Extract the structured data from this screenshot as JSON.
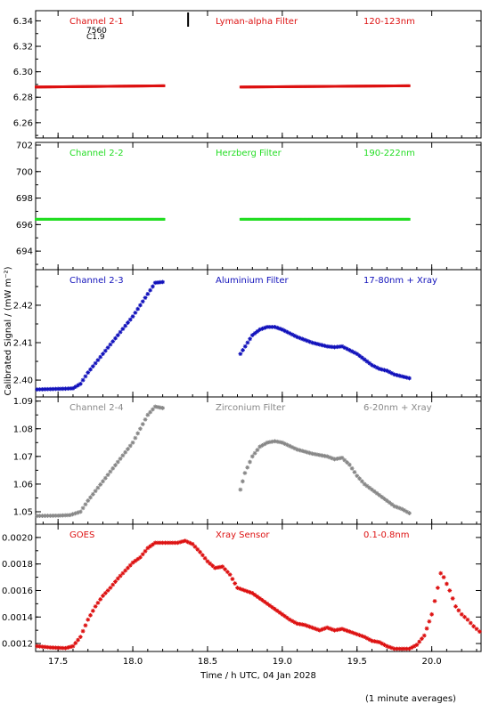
{
  "chart_data": {
    "type": "scatter",
    "xlabel": "Time / h UTC, 04 Jan 2028",
    "ylabel": "Calibrated Signal / (mW m⁻²)",
    "xlim": [
      17.35,
      20.33
    ],
    "xticks": [
      17.5,
      18.0,
      18.5,
      19.0,
      19.5,
      20.0
    ],
    "footnote": "(1 minute averages)",
    "panels": [
      {
        "channel": "Channel 2-1",
        "filter": "Lyman-alpha Filter",
        "band": "120-123nm",
        "color": "#dd1111",
        "annotations": [
          "7560",
          "C1.9"
        ],
        "ylim": [
          6.248,
          6.348
        ],
        "yticks": [
          6.26,
          6.28,
          6.3,
          6.32,
          6.34
        ],
        "segments": [
          {
            "x0": 17.35,
            "x1": 18.21,
            "y0": 6.288,
            "y1": 6.289
          },
          {
            "x0": 18.72,
            "x1": 19.85,
            "y0": 6.288,
            "y1": 6.289
          }
        ]
      },
      {
        "channel": "Channel 2-2",
        "filter": "Herzberg Filter",
        "band": "190-222nm",
        "color": "#22dd22",
        "ylim": [
          692.6,
          702.2
        ],
        "yticks": [
          694,
          696,
          698,
          700,
          702
        ],
        "segments": [
          {
            "x0": 17.35,
            "x1": 18.21,
            "y0": 696.4,
            "y1": 696.4
          },
          {
            "x0": 18.72,
            "x1": 19.85,
            "y0": 696.4,
            "y1": 696.4
          }
        ]
      },
      {
        "channel": "Channel 2-3",
        "filter": "Aluminium Filter",
        "band": "17-80nm + Xray",
        "color": "#1111bb",
        "ylim": [
          2.3955,
          2.4295
        ],
        "yticks": [
          2.4,
          2.41,
          2.42
        ],
        "series": [
          [
            17.36,
            2.3975
          ],
          [
            17.45,
            2.3976
          ],
          [
            17.55,
            2.3977
          ],
          [
            17.6,
            2.3978
          ],
          [
            17.65,
            2.399
          ],
          [
            17.7,
            2.402
          ],
          [
            17.8,
            2.407
          ],
          [
            17.9,
            2.412
          ],
          [
            18.0,
            2.417
          ],
          [
            18.05,
            2.42
          ],
          [
            18.1,
            2.423
          ],
          [
            18.15,
            2.426
          ],
          [
            18.2,
            2.4262
          ],
          [
            18.72,
            2.407
          ],
          [
            18.8,
            2.412
          ],
          [
            18.85,
            2.4135
          ],
          [
            18.9,
            2.4142
          ],
          [
            18.95,
            2.4142
          ],
          [
            19.0,
            2.4135
          ],
          [
            19.1,
            2.4115
          ],
          [
            19.2,
            2.41
          ],
          [
            19.25,
            2.4095
          ],
          [
            19.3,
            2.409
          ],
          [
            19.35,
            2.4088
          ],
          [
            19.4,
            2.409
          ],
          [
            19.45,
            2.408
          ],
          [
            19.5,
            2.407
          ],
          [
            19.55,
            2.4055
          ],
          [
            19.6,
            2.404
          ],
          [
            19.65,
            2.403
          ],
          [
            19.7,
            2.4025
          ],
          [
            19.75,
            2.4015
          ],
          [
            19.8,
            2.401
          ],
          [
            19.85,
            2.4005
          ]
        ]
      },
      {
        "channel": "Channel 2-4",
        "filter": "Zirconium Filter",
        "band": "6-20nm + Xray",
        "color": "#888888",
        "ylim": [
          1.0455,
          1.0915
        ],
        "yticks": [
          1.05,
          1.06,
          1.07,
          1.08,
          1.09
        ],
        "series": [
          [
            17.36,
            1.0485
          ],
          [
            17.5,
            1.0486
          ],
          [
            17.58,
            1.0488
          ],
          [
            17.65,
            1.05
          ],
          [
            17.7,
            1.054
          ],
          [
            17.8,
            1.061
          ],
          [
            17.9,
            1.068
          ],
          [
            18.0,
            1.075
          ],
          [
            18.05,
            1.08
          ],
          [
            18.1,
            1.085
          ],
          [
            18.15,
            1.088
          ],
          [
            18.2,
            1.0875
          ],
          [
            18.72,
            1.058
          ],
          [
            18.75,
            1.064
          ],
          [
            18.8,
            1.07
          ],
          [
            18.85,
            1.0735
          ],
          [
            18.9,
            1.075
          ],
          [
            18.95,
            1.0755
          ],
          [
            19.0,
            1.075
          ],
          [
            19.1,
            1.0725
          ],
          [
            19.2,
            1.071
          ],
          [
            19.25,
            1.0705
          ],
          [
            19.3,
            1.07
          ],
          [
            19.35,
            1.069
          ],
          [
            19.4,
            1.0695
          ],
          [
            19.45,
            1.067
          ],
          [
            19.5,
            1.063
          ],
          [
            19.55,
            1.06
          ],
          [
            19.6,
            1.058
          ],
          [
            19.65,
            1.056
          ],
          [
            19.7,
            1.054
          ],
          [
            19.75,
            1.052
          ],
          [
            19.8,
            1.051
          ],
          [
            19.85,
            1.0495
          ]
        ]
      },
      {
        "channel": "GOES",
        "filter": "Xray Sensor",
        "band": "0.1-0.8nm",
        "color": "#dd1111",
        "ylim": [
          0.00114,
          0.0021
        ],
        "yticks": [
          0.0012,
          0.0014,
          0.0016,
          0.0018,
          0.002
        ],
        "series": [
          [
            17.36,
            0.00118
          ],
          [
            17.45,
            0.00117
          ],
          [
            17.55,
            0.001165
          ],
          [
            17.6,
            0.00118
          ],
          [
            17.65,
            0.00125
          ],
          [
            17.7,
            0.00138
          ],
          [
            17.75,
            0.00148
          ],
          [
            17.8,
            0.00156
          ],
          [
            17.85,
            0.00162
          ],
          [
            17.9,
            0.00169
          ],
          [
            17.95,
            0.00175
          ],
          [
            18.0,
            0.00181
          ],
          [
            18.05,
            0.00185
          ],
          [
            18.1,
            0.00192
          ],
          [
            18.15,
            0.00196
          ],
          [
            18.2,
            0.00196
          ],
          [
            18.3,
            0.00196
          ],
          [
            18.35,
            0.001975
          ],
          [
            18.4,
            0.00195
          ],
          [
            18.45,
            0.00189
          ],
          [
            18.5,
            0.00182
          ],
          [
            18.55,
            0.00177
          ],
          [
            18.6,
            0.00178
          ],
          [
            18.65,
            0.00172
          ],
          [
            18.7,
            0.00162
          ],
          [
            18.75,
            0.0016
          ],
          [
            18.8,
            0.00158
          ],
          [
            18.85,
            0.00154
          ],
          [
            18.9,
            0.0015
          ],
          [
            18.95,
            0.00146
          ],
          [
            19.0,
            0.00142
          ],
          [
            19.05,
            0.00138
          ],
          [
            19.1,
            0.00135
          ],
          [
            19.15,
            0.00134
          ],
          [
            19.2,
            0.00132
          ],
          [
            19.25,
            0.0013
          ],
          [
            19.3,
            0.00132
          ],
          [
            19.35,
            0.0013
          ],
          [
            19.4,
            0.00131
          ],
          [
            19.45,
            0.00129
          ],
          [
            19.5,
            0.00127
          ],
          [
            19.55,
            0.00125
          ],
          [
            19.6,
            0.00122
          ],
          [
            19.65,
            0.00121
          ],
          [
            19.7,
            0.00118
          ],
          [
            19.75,
            0.00116
          ],
          [
            19.8,
            0.00116
          ],
          [
            19.85,
            0.00116
          ],
          [
            19.9,
            0.00119
          ],
          [
            19.95,
            0.00126
          ],
          [
            20.0,
            0.00142
          ],
          [
            20.04,
            0.00162
          ],
          [
            20.06,
            0.00173
          ],
          [
            20.08,
            0.0017
          ],
          [
            20.12,
            0.0016
          ],
          [
            20.16,
            0.00148
          ],
          [
            20.2,
            0.00142
          ],
          [
            20.24,
            0.00138
          ],
          [
            20.28,
            0.00133
          ],
          [
            20.32,
            0.00129
          ]
        ]
      }
    ],
    "marker": {
      "x": 18.37
    }
  }
}
